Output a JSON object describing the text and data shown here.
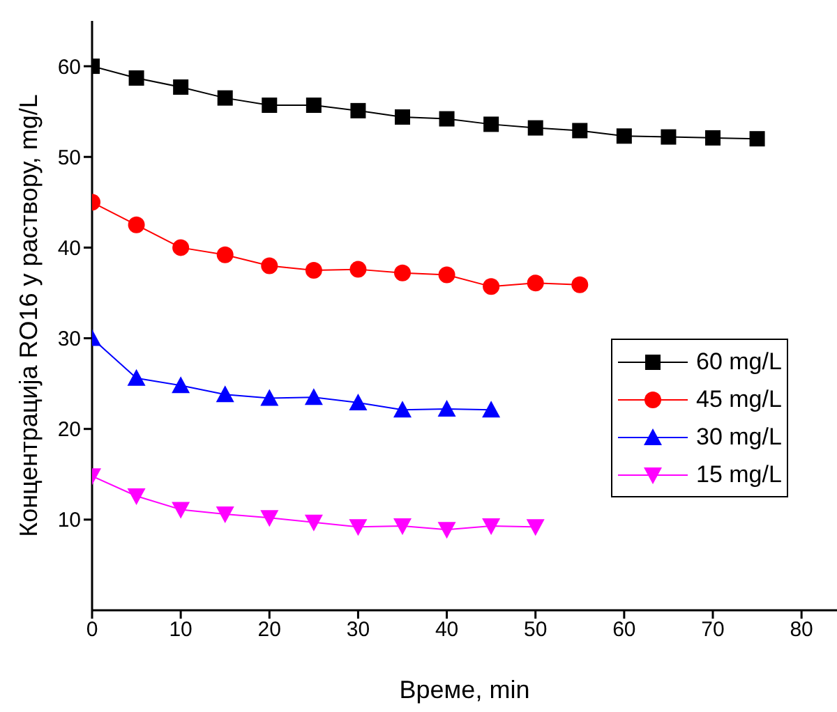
{
  "chart_data": {
    "type": "line",
    "xlabel": "Време, min",
    "ylabel": "Концентрација RO16 у раствору, mg/L",
    "xlim": [
      0,
      84
    ],
    "xticks": [
      0,
      10,
      20,
      30,
      40,
      50,
      60,
      70,
      80
    ],
    "ylim": [
      0,
      65
    ],
    "yticks": [
      10,
      20,
      30,
      40,
      50,
      60
    ],
    "legend": "right",
    "grid": false,
    "series": [
      {
        "name": "60 mg/L",
        "color": "#000000",
        "marker": "square",
        "x": [
          0,
          5,
          10,
          15,
          20,
          25,
          30,
          35,
          40,
          45,
          50,
          55,
          60,
          65,
          70,
          75
        ],
        "values": [
          60,
          58.7,
          57.7,
          56.5,
          55.7,
          55.7,
          55.1,
          54.4,
          54.2,
          53.6,
          53.2,
          52.9,
          52.3,
          52.2,
          52.1,
          52.0
        ]
      },
      {
        "name": "45 mg/L",
        "color": "#ff0000",
        "marker": "circle",
        "x": [
          0,
          5,
          10,
          15,
          20,
          25,
          30,
          35,
          40,
          45,
          50,
          55
        ],
        "values": [
          45,
          42.5,
          40,
          39.2,
          38,
          37.5,
          37.6,
          37.2,
          37,
          35.7,
          36.1,
          35.9
        ]
      },
      {
        "name": "30 mg/L",
        "color": "#0000ff",
        "marker": "triangle",
        "x": [
          0,
          5,
          10,
          15,
          20,
          25,
          30,
          35,
          40,
          45
        ],
        "values": [
          30,
          25.6,
          24.8,
          23.8,
          23.4,
          23.5,
          22.9,
          22.1,
          22.2,
          22.1
        ]
      },
      {
        "name": "15 mg/L",
        "color": "#ff00ff",
        "marker": "triangle-down",
        "x": [
          0,
          5,
          10,
          15,
          20,
          25,
          30,
          35,
          40,
          45,
          50
        ],
        "values": [
          14.8,
          12.6,
          11.1,
          10.6,
          10.2,
          9.7,
          9.2,
          9.3,
          8.9,
          9.3,
          9.2
        ]
      }
    ]
  }
}
